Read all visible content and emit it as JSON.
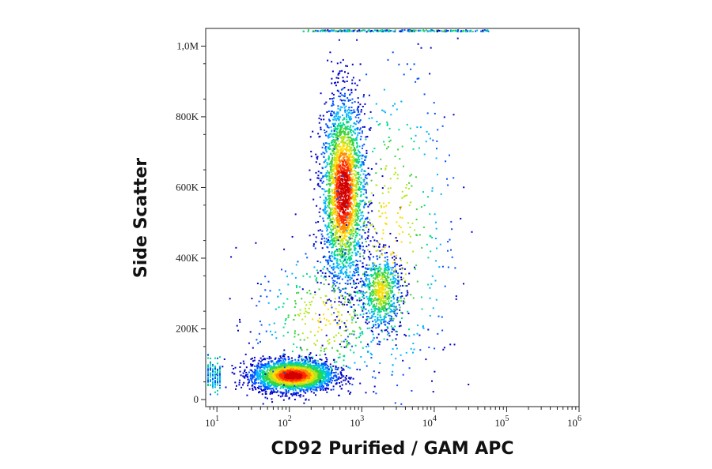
{
  "chart_data": {
    "type": "scatter",
    "title": "",
    "xlabel": "CD92 Purified / GAM APC",
    "ylabel": "Side Scatter",
    "x_scale": "log",
    "xlim": [
      7,
      1000000
    ],
    "ylim": [
      -20000,
      1050000
    ],
    "x_ticks": [
      {
        "base": "10",
        "exp": "1",
        "value": 10
      },
      {
        "base": "10",
        "exp": "2",
        "value": 100
      },
      {
        "base": "10",
        "exp": "3",
        "value": 1000
      },
      {
        "base": "10",
        "exp": "4",
        "value": 10000
      },
      {
        "base": "10",
        "exp": "5",
        "value": 100000
      },
      {
        "base": "10",
        "exp": "6",
        "value": 1000000
      }
    ],
    "y_ticks": [
      {
        "label": "0",
        "value": 0
      },
      {
        "label": "200K",
        "value": 200000
      },
      {
        "label": "400K",
        "value": 400000
      },
      {
        "label": "600K",
        "value": 600000
      },
      {
        "label": "800K",
        "value": 800000
      },
      {
        "label": "1,0M",
        "value": 1000000
      }
    ],
    "grid": false,
    "density_colormap": [
      "#0000c8",
      "#0050ff",
      "#00b4ff",
      "#00dc8c",
      "#3cd23c",
      "#b4e61e",
      "#ffdc00",
      "#ff8c00",
      "#ff2800",
      "#d20000"
    ],
    "populations": [
      {
        "center_x": 110,
        "center_y": 70000,
        "spread_log_x": 0.28,
        "spread_y": 22000,
        "count": 2800
      },
      {
        "center_x": 550,
        "center_y": 590000,
        "spread_log_x": 0.15,
        "spread_y": 130000,
        "count": 2600
      },
      {
        "center_x": 1800,
        "center_y": 310000,
        "spread_log_x": 0.14,
        "spread_y": 55000,
        "count": 700
      },
      {
        "center_x": 2500,
        "center_y": 480000,
        "spread_log_x": 0.45,
        "spread_y": 250000,
        "count": 500
      },
      {
        "center_x": 300,
        "center_y": 230000,
        "spread_log_x": 0.5,
        "spread_y": 110000,
        "count": 400
      }
    ]
  }
}
